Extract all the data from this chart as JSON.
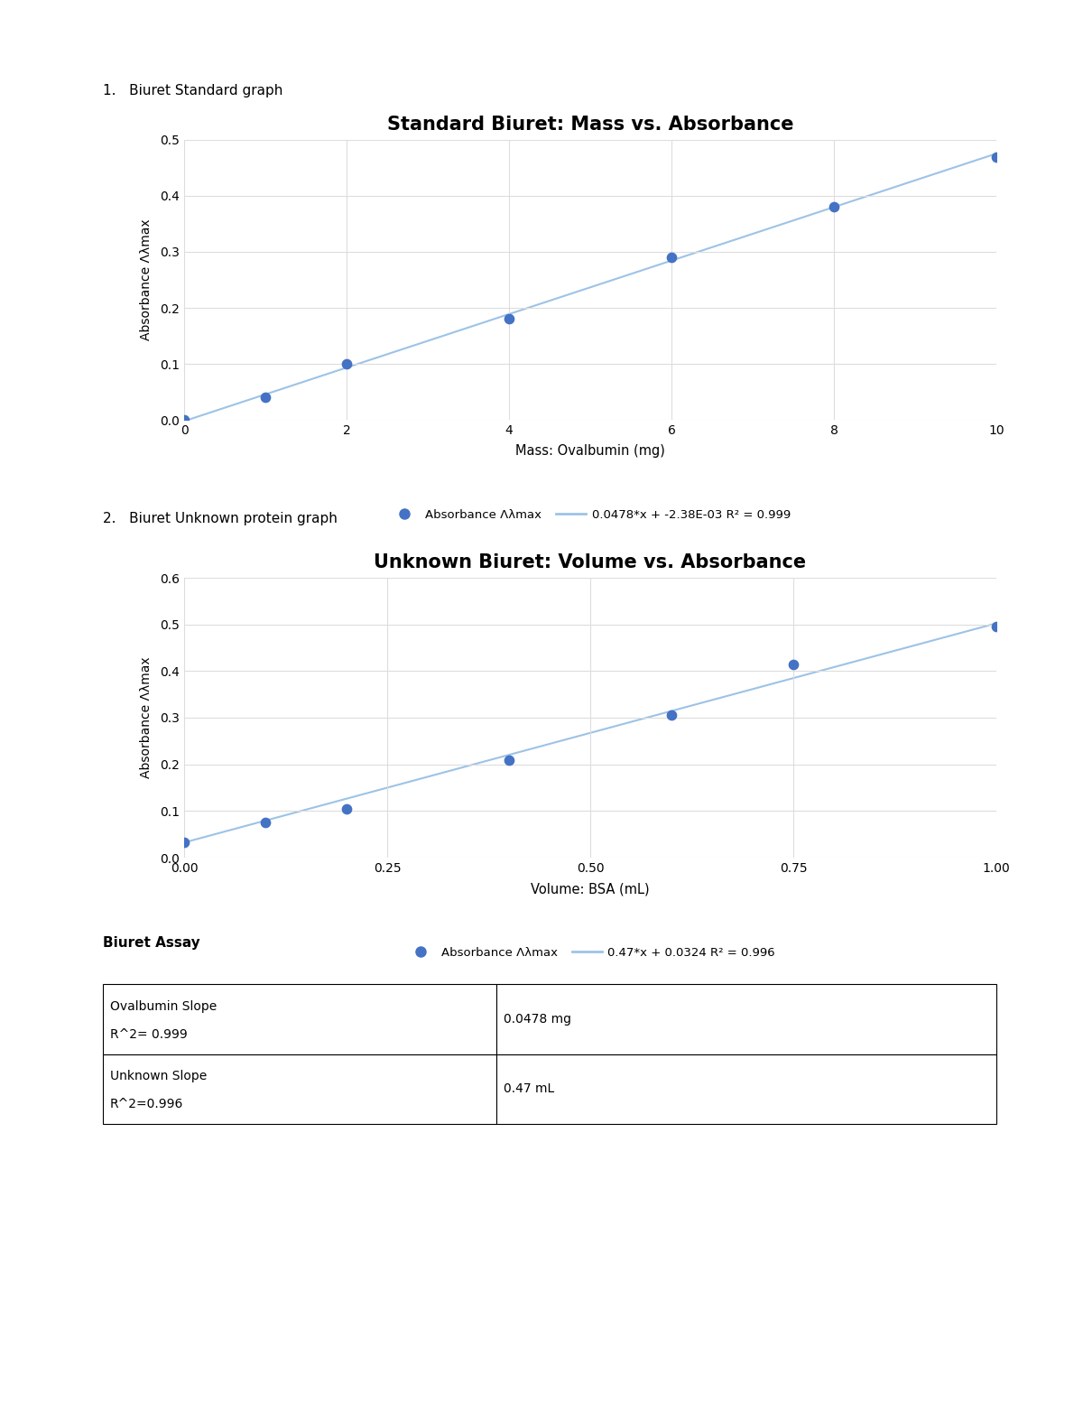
{
  "graph1": {
    "title": "Standard Biuret: Mass vs. Absorbance",
    "xlabel": "Mass: Ovalbumin (mg)",
    "ylabel": "Absorbance Λλmax",
    "x_data": [
      0,
      1,
      2,
      4,
      6,
      8,
      10
    ],
    "y_data": [
      0.0,
      0.04,
      0.1,
      0.18,
      0.29,
      0.38,
      0.47
    ],
    "slope": 0.0478,
    "intercept": -0.00238,
    "r2": 0.999,
    "xlim": [
      0,
      10
    ],
    "ylim": [
      0.0,
      0.5
    ],
    "yticks": [
      0.0,
      0.1,
      0.2,
      0.3,
      0.4,
      0.5
    ],
    "xticks": [
      0,
      2,
      4,
      6,
      8,
      10
    ],
    "legend_dot": "Absorbance Λλmax",
    "legend_line": "0.0478*x + -2.38E-03 R² = 0.999",
    "dot_color": "#4472C4",
    "line_color": "#9DC3E6"
  },
  "graph2": {
    "title": "Unknown Biuret: Volume vs. Absorbance",
    "xlabel": "Volume: BSA (mL)",
    "ylabel": "Absorbance Λλmax",
    "x_data": [
      0.0,
      0.1,
      0.2,
      0.4,
      0.6,
      0.75,
      1.0
    ],
    "y_data": [
      0.032,
      0.075,
      0.105,
      0.21,
      0.305,
      0.415,
      0.495
    ],
    "slope": 0.47,
    "intercept": 0.0324,
    "r2": 0.996,
    "xlim": [
      0.0,
      1.0
    ],
    "ylim": [
      0.0,
      0.6
    ],
    "yticks": [
      0.0,
      0.1,
      0.2,
      0.3,
      0.4,
      0.5,
      0.6
    ],
    "xticks": [
      0.0,
      0.25,
      0.5,
      0.75,
      1.0
    ],
    "legend_dot": "Absorbance Λλmax",
    "legend_line": "0.47*x + 0.0324 R² = 0.996",
    "dot_color": "#4472C4",
    "line_color": "#9DC3E6"
  },
  "label1": "1.   Biuret Standard graph",
  "label2": "2.   Biuret Unknown protein graph",
  "table_title": "Biuret Assay",
  "table_rows": [
    [
      "Ovalbumin Slope",
      "0.0478 mg"
    ],
    [
      "R^2= 0.999",
      ""
    ],
    [
      "Unknown Slope",
      "0.47 mL"
    ],
    [
      "R^2=0.996",
      ""
    ]
  ],
  "bg_color": "#FFFFFF"
}
